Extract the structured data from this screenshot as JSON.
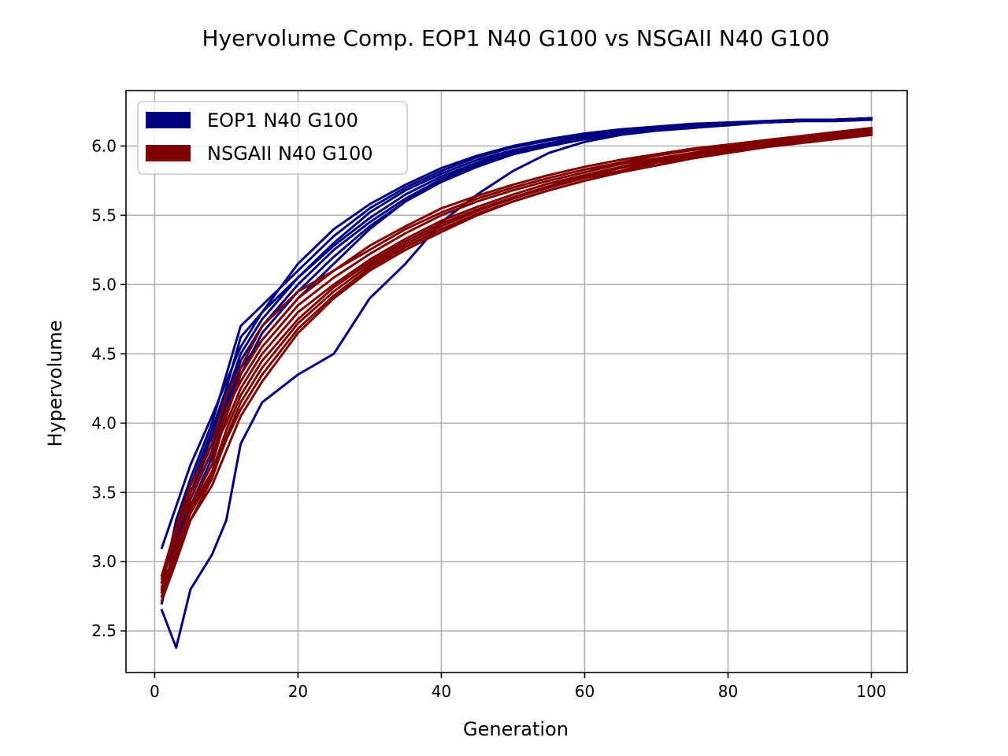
{
  "chart_data": {
    "type": "line",
    "title": "Hyervolume Comp. EOP1 N40 G100 vs NSGAII N40 G100",
    "xlabel": "Generation",
    "ylabel": "Hypervolume",
    "xlim": [
      -4,
      105
    ],
    "ylim": [
      2.2,
      6.4
    ],
    "xticks": [
      0,
      20,
      40,
      60,
      80,
      100
    ],
    "yticks": [
      2.5,
      3.0,
      3.5,
      4.0,
      4.5,
      5.0,
      5.5,
      6.0
    ],
    "xtick_labels": [
      "0",
      "20",
      "40",
      "60",
      "80",
      "100"
    ],
    "ytick_labels": [
      "2.5",
      "3.0",
      "3.5",
      "4.0",
      "4.5",
      "5.0",
      "5.5",
      "6.0"
    ],
    "grid": true,
    "legend_position": "top-left",
    "x": [
      1,
      3,
      5,
      8,
      10,
      12,
      15,
      20,
      25,
      30,
      35,
      40,
      45,
      50,
      55,
      60,
      65,
      70,
      75,
      80,
      85,
      90,
      95,
      100
    ],
    "series": [
      {
        "name": "EOP1 N40 G100",
        "color": "#000080",
        "runs": [
          [
            3.1,
            3.4,
            3.7,
            4.05,
            4.3,
            4.55,
            4.8,
            5.15,
            5.4,
            5.58,
            5.72,
            5.84,
            5.93,
            6.0,
            6.05,
            6.09,
            6.12,
            6.14,
            6.16,
            6.17,
            6.18,
            6.19,
            6.19,
            6.2
          ],
          [
            2.7,
            3.2,
            3.55,
            3.95,
            4.25,
            4.62,
            4.8,
            5.05,
            5.3,
            5.52,
            5.68,
            5.8,
            5.9,
            5.97,
            6.02,
            6.06,
            6.1,
            6.12,
            6.14,
            6.16,
            6.17,
            6.18,
            6.19,
            6.19
          ],
          [
            2.65,
            2.38,
            2.8,
            3.05,
            3.3,
            3.85,
            4.15,
            4.35,
            4.5,
            4.9,
            5.15,
            5.45,
            5.65,
            5.82,
            5.95,
            6.03,
            6.08,
            6.11,
            6.13,
            6.15,
            6.17,
            6.18,
            6.19,
            6.2
          ],
          [
            2.8,
            3.3,
            3.6,
            4.0,
            4.35,
            4.7,
            4.85,
            5.1,
            5.35,
            5.55,
            5.7,
            5.82,
            5.92,
            5.99,
            6.04,
            6.08,
            6.11,
            6.13,
            6.15,
            6.16,
            6.17,
            6.18,
            6.19,
            6.2
          ],
          [
            2.75,
            3.1,
            3.45,
            3.8,
            4.15,
            4.45,
            4.7,
            5.0,
            5.25,
            5.45,
            5.62,
            5.76,
            5.87,
            5.95,
            6.01,
            6.06,
            6.1,
            6.12,
            6.14,
            6.16,
            6.17,
            6.18,
            6.19,
            6.19
          ],
          [
            2.85,
            3.25,
            3.55,
            3.9,
            4.2,
            4.5,
            4.75,
            5.05,
            5.28,
            5.48,
            5.65,
            5.78,
            5.88,
            5.96,
            6.02,
            6.07,
            6.1,
            6.13,
            6.15,
            6.16,
            6.17,
            6.18,
            6.19,
            6.2
          ],
          [
            2.7,
            3.15,
            3.5,
            3.85,
            4.1,
            4.4,
            4.6,
            4.9,
            5.15,
            5.4,
            5.6,
            5.74,
            5.85,
            5.94,
            6.0,
            6.05,
            6.09,
            6.12,
            6.14,
            6.15,
            6.17,
            6.18,
            6.18,
            6.19
          ],
          [
            2.78,
            3.05,
            3.4,
            3.75,
            4.05,
            4.35,
            4.65,
            4.95,
            5.2,
            5.42,
            5.6,
            5.75,
            5.86,
            5.94,
            6.0,
            6.05,
            6.09,
            6.12,
            6.14,
            6.16,
            6.17,
            6.18,
            6.19,
            6.2
          ]
        ]
      },
      {
        "name": "NSGAII N40 G100",
        "color": "#800000",
        "runs": [
          [
            2.9,
            3.25,
            3.55,
            3.85,
            4.2,
            4.4,
            4.7,
            4.95,
            5.1,
            5.25,
            5.4,
            5.52,
            5.62,
            5.7,
            5.77,
            5.83,
            5.88,
            5.93,
            5.97,
            6.0,
            6.04,
            6.07,
            6.1,
            6.13
          ],
          [
            2.8,
            3.1,
            3.4,
            3.7,
            4.05,
            4.35,
            4.6,
            4.9,
            5.1,
            5.28,
            5.42,
            5.55,
            5.64,
            5.72,
            5.79,
            5.85,
            5.9,
            5.94,
            5.98,
            6.01,
            6.04,
            6.07,
            6.1,
            6.12
          ],
          [
            2.75,
            3.05,
            3.3,
            3.55,
            3.8,
            4.05,
            4.3,
            4.65,
            4.9,
            5.1,
            5.25,
            5.38,
            5.5,
            5.6,
            5.68,
            5.75,
            5.81,
            5.86,
            5.91,
            5.95,
            5.99,
            6.03,
            6.06,
            6.09
          ],
          [
            2.85,
            3.2,
            3.45,
            3.8,
            4.0,
            4.25,
            4.5,
            4.8,
            5.0,
            5.18,
            5.33,
            5.46,
            5.56,
            5.65,
            5.73,
            5.79,
            5.85,
            5.9,
            5.94,
            5.98,
            6.02,
            6.05,
            6.08,
            6.11
          ],
          [
            2.72,
            3.0,
            3.3,
            3.6,
            3.9,
            4.15,
            4.4,
            4.72,
            4.95,
            5.14,
            5.29,
            5.42,
            5.53,
            5.62,
            5.7,
            5.77,
            5.82,
            5.88,
            5.92,
            5.96,
            6.0,
            6.03,
            6.06,
            6.09
          ],
          [
            2.88,
            3.18,
            3.5,
            3.78,
            4.1,
            4.3,
            4.55,
            4.85,
            5.05,
            5.22,
            5.37,
            5.5,
            5.6,
            5.68,
            5.75,
            5.81,
            5.87,
            5.91,
            5.95,
            5.99,
            6.03,
            6.06,
            6.09,
            6.12
          ],
          [
            2.78,
            3.12,
            3.38,
            3.65,
            3.95,
            4.2,
            4.45,
            4.75,
            4.98,
            5.16,
            5.31,
            5.44,
            5.54,
            5.63,
            5.71,
            5.78,
            5.84,
            5.89,
            5.93,
            5.97,
            6.01,
            6.04,
            6.07,
            6.1
          ],
          [
            2.82,
            3.08,
            3.35,
            3.62,
            3.88,
            4.1,
            4.35,
            4.68,
            4.92,
            5.12,
            5.27,
            5.4,
            5.51,
            5.6,
            5.68,
            5.75,
            5.81,
            5.86,
            5.91,
            5.95,
            5.99,
            6.02,
            6.05,
            6.08
          ]
        ]
      }
    ]
  }
}
